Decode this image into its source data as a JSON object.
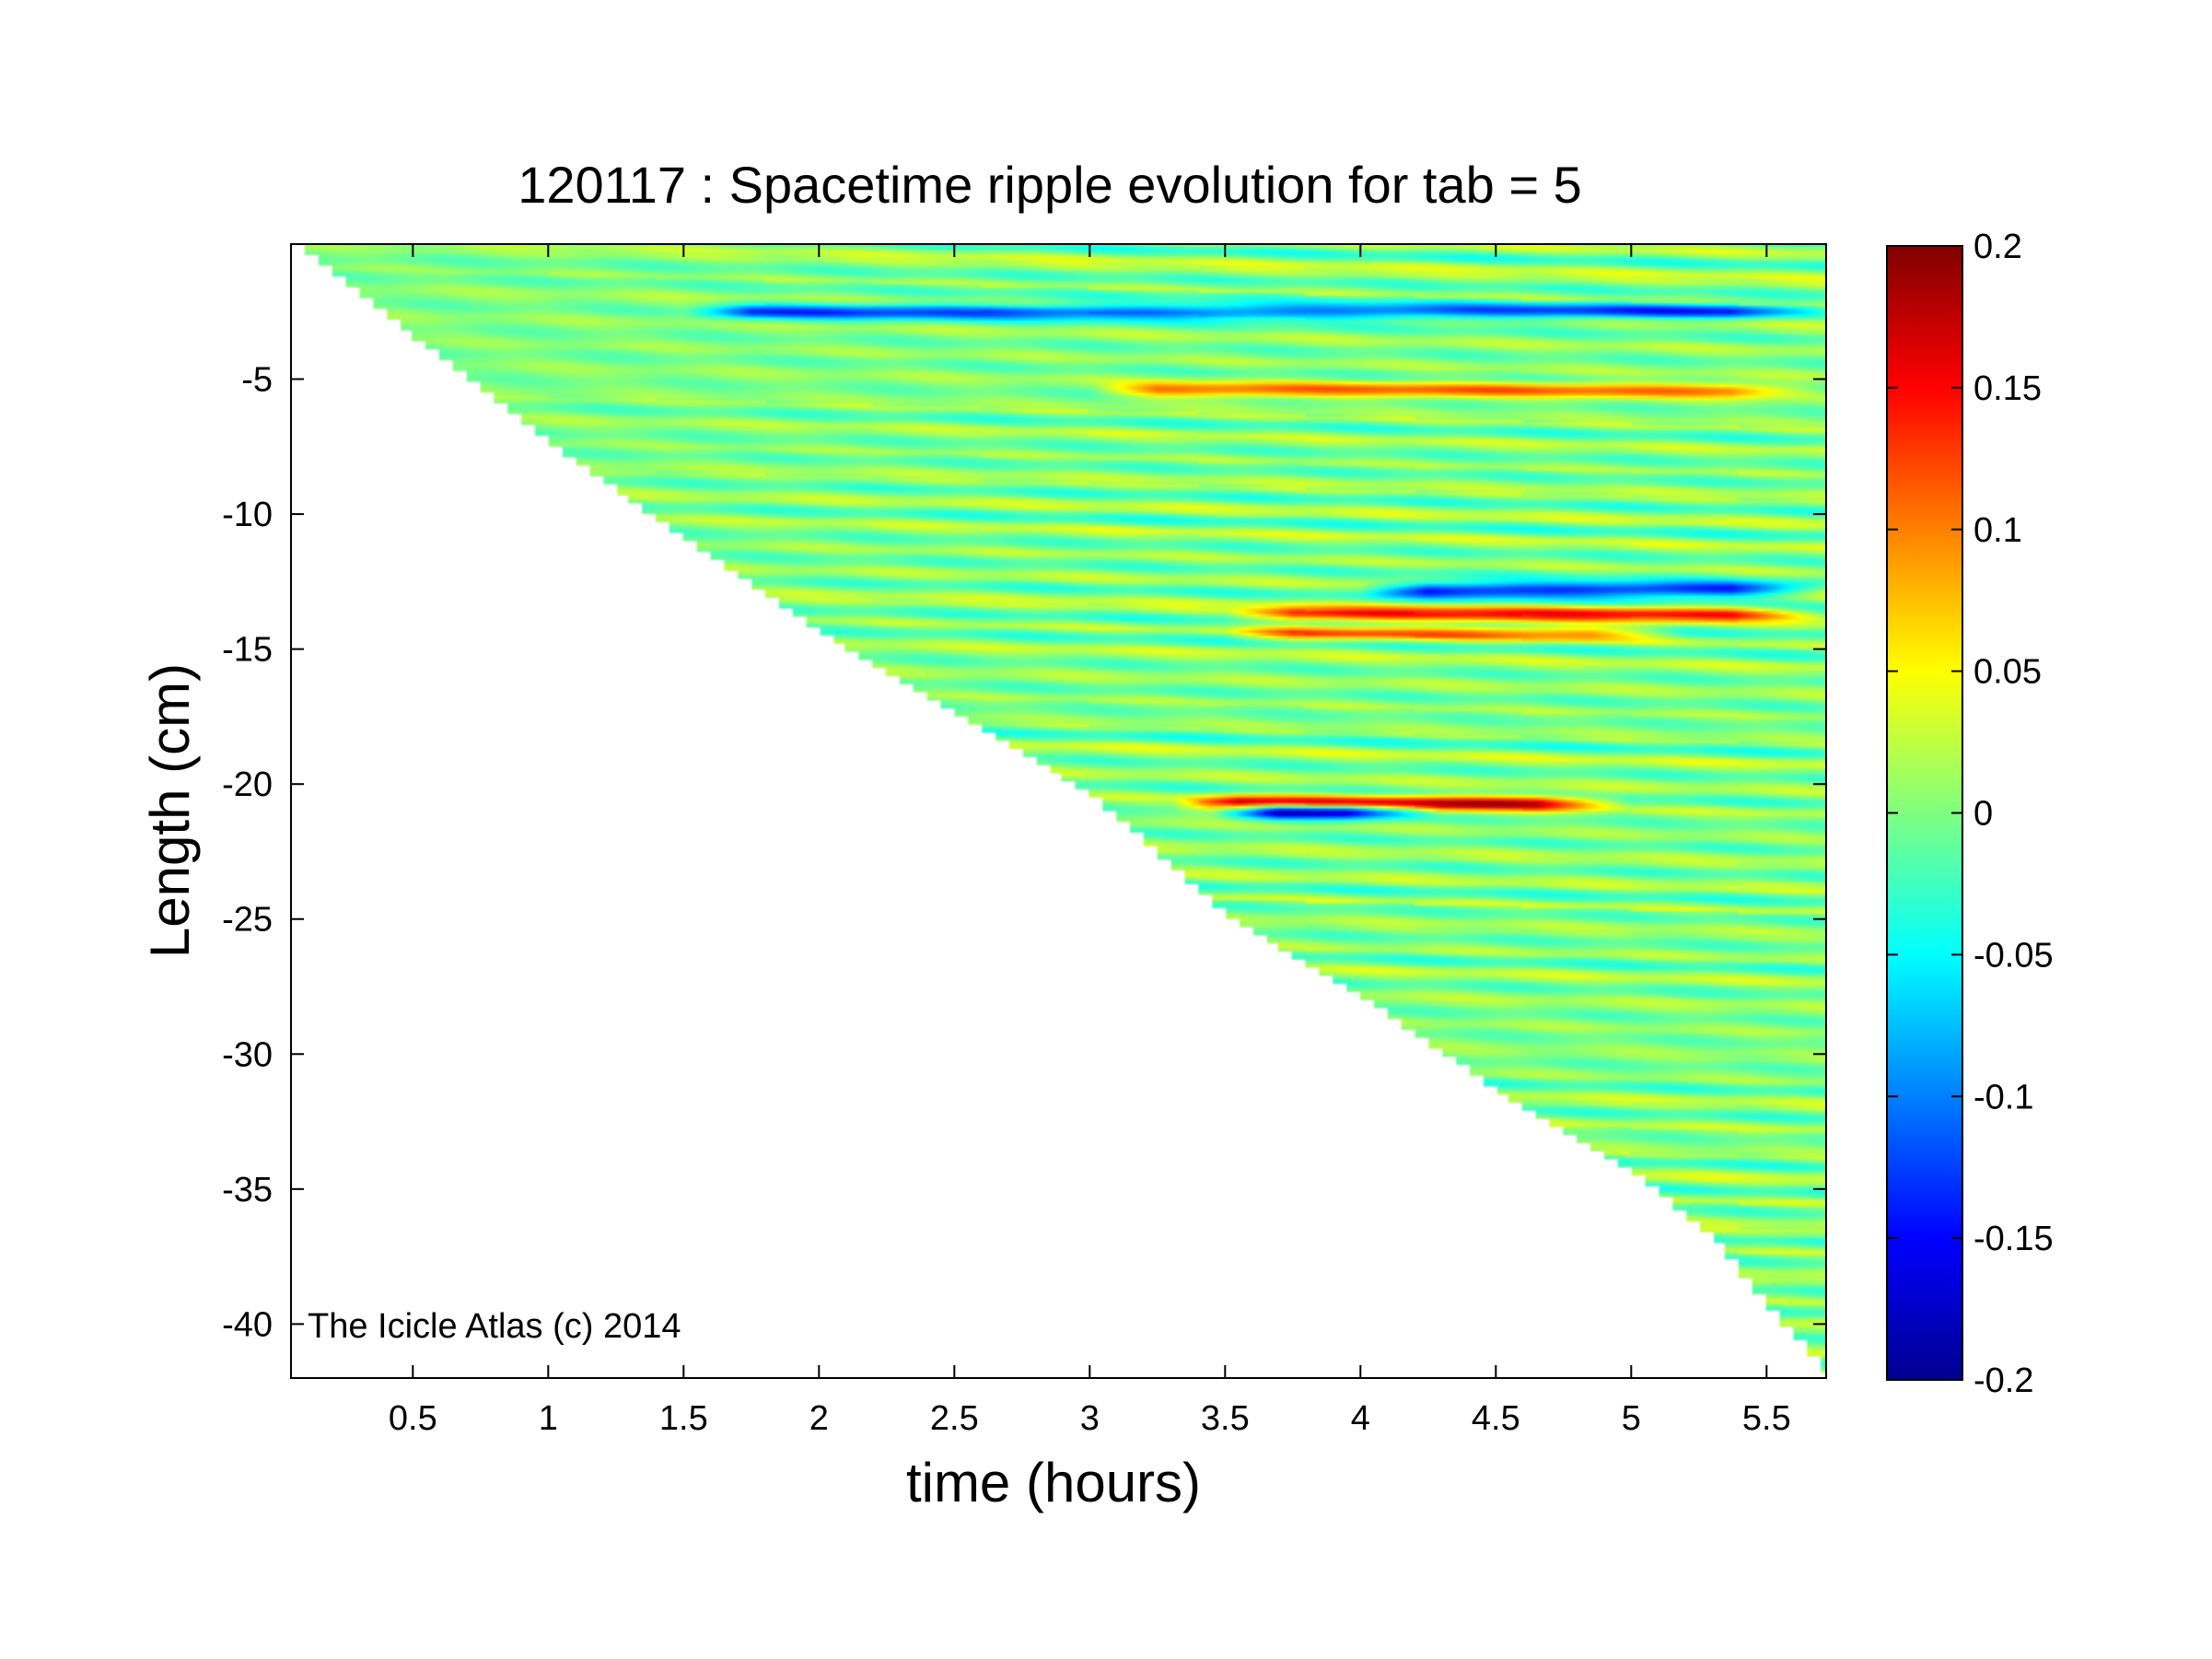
{
  "chart_data": {
    "type": "heatmap",
    "title": "120117 : Spacetime ripple evolution for tab = 5",
    "xlabel": "time (hours)",
    "ylabel": "Length (cm)",
    "xlim": [
      0.05,
      5.72
    ],
    "ylim": [
      -42,
      0
    ],
    "xticks": [
      0.5,
      1,
      1.5,
      2,
      2.5,
      3,
      3.5,
      4,
      4.5,
      5,
      5.5
    ],
    "xtick_labels": [
      "0.5",
      "1",
      "1.5",
      "2",
      "2.5",
      "3",
      "3.5",
      "4",
      "4.5",
      "5",
      "5.5"
    ],
    "yticks": [
      -5,
      -10,
      -15,
      -20,
      -25,
      -30,
      -35,
      -40
    ],
    "ytick_labels": [
      "-5",
      "-10",
      "-15",
      "-20",
      "-25",
      "-30",
      "-35",
      "-40"
    ],
    "colorbar": {
      "colormap": "jet",
      "clim": [
        -0.2,
        0.2
      ],
      "ticks": [
        0.2,
        0.15,
        0.1,
        0.05,
        0,
        -0.05,
        -0.1,
        -0.15,
        -0.2
      ],
      "tick_labels": [
        "0.2",
        "0.15",
        "0.1",
        "0.05",
        "0",
        "-0.05",
        "-0.1",
        "-0.15",
        "-0.2"
      ]
    },
    "data_boundary": {
      "description_values": "length of icicle (lower edge of data) vs time",
      "points": [
        [
          0.05,
          0
        ],
        [
          1.0,
          -7.5
        ],
        [
          2.0,
          -14.5
        ],
        [
          3.0,
          -20.5
        ],
        [
          3.5,
          -25
        ],
        [
          4.0,
          -28
        ],
        [
          4.5,
          -31.5
        ],
        [
          5.0,
          -34.5
        ],
        [
          5.3,
          -37
        ],
        [
          5.5,
          -39.5
        ],
        [
          5.72,
          -42
        ]
      ]
    },
    "ripples": {
      "spacing_cm": 0.9,
      "drift_cm_per_hour": -0.25,
      "amplitude_background": 0.025
    },
    "features": [
      {
        "label": "strong negative band",
        "y": -21.0,
        "x_range": [
          3.45,
          4.3
        ],
        "value": -0.2
      },
      {
        "label": "strong positive band",
        "y": -20.7,
        "x_range": [
          3.3,
          5.0
        ],
        "value": 0.17
      },
      {
        "label": "negative band",
        "y": -12.8,
        "x_range": [
          4.0,
          5.72
        ],
        "value": -0.15
      },
      {
        "label": "positive band",
        "y": -13.7,
        "x_range": [
          3.5,
          5.72
        ],
        "value": 0.12
      },
      {
        "label": "positive band",
        "y": -14.4,
        "x_range": [
          3.5,
          5.2
        ],
        "value": 0.1
      },
      {
        "label": "negative band",
        "y": -2.5,
        "x_range": [
          1.5,
          5.72
        ],
        "value": -0.12
      },
      {
        "label": "positive band",
        "y": -5.4,
        "x_range": [
          3.0,
          5.72
        ],
        "value": 0.1
      }
    ],
    "grid": false,
    "legend": "none"
  },
  "watermark": "The Icicle Atlas (c) 2014"
}
